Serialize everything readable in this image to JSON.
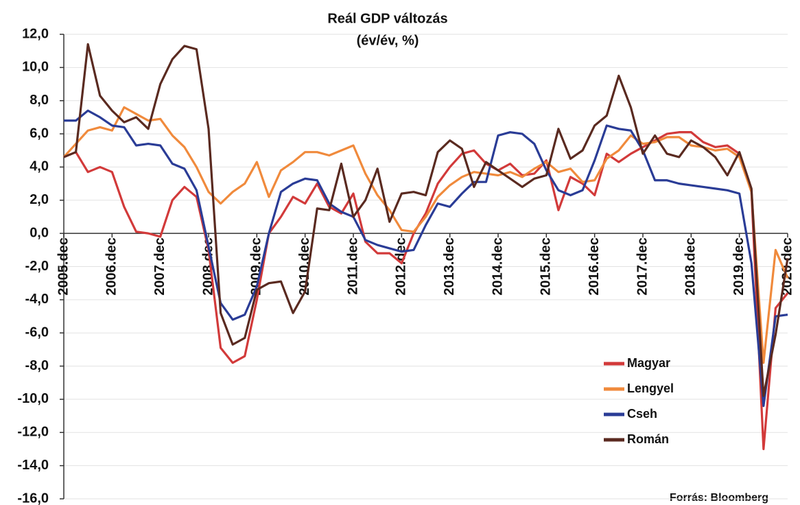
{
  "chart_data": {
    "type": "line",
    "title": "Reál GDP változás",
    "subtitle": "(év/év, %)",
    "source": "Forrás: Bloomberg",
    "categories": [
      "2005.dec",
      null,
      null,
      null,
      "2006.dec",
      null,
      null,
      null,
      "2007.dec",
      null,
      null,
      null,
      "2008.dec",
      null,
      null,
      null,
      "2009.dec",
      null,
      null,
      null,
      "2010.dec",
      null,
      null,
      null,
      "2011.dec",
      null,
      null,
      null,
      "2012.dec",
      null,
      null,
      null,
      "2013.dec",
      null,
      null,
      null,
      "2014.dec",
      null,
      null,
      null,
      "2015.dec",
      null,
      null,
      null,
      "2016.dec",
      null,
      null,
      null,
      "2017.dec",
      null,
      null,
      null,
      "2018.dec",
      null,
      null,
      null,
      "2019.dec",
      null,
      null,
      null,
      "2020.dec"
    ],
    "series": [
      {
        "name": "Magyar",
        "color": "#d23a3a",
        "values": [
          4.6,
          4.9,
          3.7,
          4.0,
          3.7,
          1.6,
          0.1,
          0.0,
          -0.2,
          2.0,
          2.8,
          2.2,
          -1.0,
          -6.9,
          -7.8,
          -7.4,
          -4.0,
          0.0,
          1.0,
          2.2,
          1.8,
          3.0,
          1.6,
          1.2,
          2.4,
          -0.5,
          -1.2,
          -1.2,
          -1.8,
          0.0,
          1.2,
          3.0,
          4.0,
          4.8,
          5.0,
          4.2,
          3.8,
          4.2,
          3.5,
          3.6,
          4.4,
          1.4,
          3.4,
          3.0,
          2.3,
          4.8,
          4.3,
          4.8,
          5.2,
          5.6,
          6.0,
          6.1,
          6.1,
          5.5,
          5.2,
          5.3,
          4.8,
          2.5,
          -13.0,
          -4.5,
          -3.6
        ]
      },
      {
        "name": "Lengyel",
        "color": "#f08a3c",
        "values": [
          4.6,
          5.4,
          6.2,
          6.4,
          6.2,
          7.6,
          7.2,
          6.8,
          6.9,
          5.9,
          5.2,
          4.0,
          2.5,
          1.8,
          2.5,
          3.0,
          4.3,
          2.2,
          3.8,
          4.3,
          4.9,
          4.9,
          4.7,
          5.0,
          5.3,
          3.6,
          2.3,
          1.4,
          0.2,
          0.1,
          1.0,
          2.2,
          2.9,
          3.4,
          3.7,
          3.6,
          3.5,
          3.7,
          3.4,
          3.9,
          4.3,
          3.7,
          3.9,
          3.1,
          3.2,
          4.5,
          5.0,
          5.9,
          5.4,
          5.5,
          5.8,
          5.8,
          5.3,
          5.2,
          5.0,
          5.1,
          4.6,
          2.5,
          -7.8,
          -1.0,
          -2.7
        ]
      },
      {
        "name": "Cseh",
        "color": "#2a3c96",
        "values": [
          6.8,
          6.8,
          7.4,
          7.0,
          6.5,
          6.4,
          5.3,
          5.4,
          5.3,
          4.2,
          3.9,
          2.6,
          -0.8,
          -4.2,
          -5.2,
          -4.9,
          -3.2,
          0.0,
          2.5,
          3.0,
          3.3,
          3.2,
          1.8,
          1.3,
          1.0,
          -0.4,
          -0.7,
          -0.9,
          -1.1,
          -1.0,
          0.5,
          1.8,
          1.6,
          2.4,
          3.1,
          3.1,
          5.9,
          6.1,
          6.0,
          5.4,
          3.8,
          2.6,
          2.3,
          2.6,
          4.4,
          6.5,
          6.3,
          6.2,
          5.0,
          3.2,
          3.2,
          3.0,
          2.9,
          2.8,
          2.7,
          2.6,
          2.4,
          -1.8,
          -10.4,
          -5.0,
          -4.9
        ]
      },
      {
        "name": "Román",
        "color": "#5a2a20",
        "values": [
          4.6,
          4.9,
          11.4,
          8.3,
          7.4,
          6.7,
          7.0,
          6.3,
          9.0,
          10.5,
          11.3,
          11.1,
          6.3,
          -4.8,
          -6.7,
          -6.3,
          -3.4,
          -3.0,
          -2.9,
          -4.8,
          -3.5,
          1.5,
          1.4,
          4.2,
          1.0,
          2.0,
          3.9,
          0.7,
          2.4,
          2.5,
          2.3,
          4.9,
          5.6,
          5.1,
          2.8,
          4.3,
          3.8,
          3.3,
          2.8,
          3.3,
          3.5,
          6.3,
          4.5,
          5.0,
          6.5,
          7.1,
          9.5,
          7.6,
          4.8,
          5.9,
          4.8,
          4.6,
          5.6,
          5.2,
          4.6,
          3.5,
          4.9,
          2.7,
          -9.8,
          -6.1,
          -1.5
        ]
      }
    ],
    "ylim": [
      -16,
      12
    ],
    "yticks": [
      {
        "value": -16,
        "label": "-16,0"
      },
      {
        "value": -14,
        "label": "-14,0"
      },
      {
        "value": -12,
        "label": "-12,0"
      },
      {
        "value": -10,
        "label": "-10,0"
      },
      {
        "value": -8,
        "label": "-8,0"
      },
      {
        "value": -6,
        "label": "-6,0"
      },
      {
        "value": -4,
        "label": "-4,0"
      },
      {
        "value": -2,
        "label": "-2,0"
      },
      {
        "value": 0,
        "label": "0,0"
      },
      {
        "value": 2,
        "label": "2,0"
      },
      {
        "value": 4,
        "label": "4,0"
      },
      {
        "value": 6,
        "label": "6,0"
      },
      {
        "value": 8,
        "label": "8,0"
      },
      {
        "value": 10,
        "label": "10,0"
      },
      {
        "value": 12,
        "label": "12,0"
      }
    ],
    "grid": true,
    "legend_position": "lower right"
  }
}
